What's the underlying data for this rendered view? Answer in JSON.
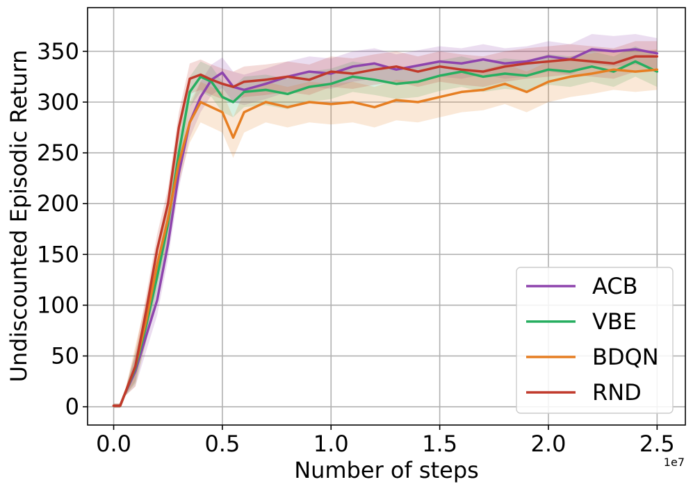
{
  "chart_data": {
    "type": "line",
    "xlabel": "Number of steps",
    "ylabel": "Undiscounted Episodic Return",
    "x_offset_label": "1e7",
    "xlim": [
      -0.12,
      2.63
    ],
    "ylim": [
      -18,
      393
    ],
    "x_ticks": [
      0.0,
      0.5,
      1.0,
      1.5,
      2.0,
      2.5
    ],
    "x_tick_labels": [
      "0.0",
      "0.5",
      "1.0",
      "1.5",
      "2.0",
      "2.5"
    ],
    "y_ticks": [
      0,
      50,
      100,
      150,
      200,
      250,
      300,
      350
    ],
    "y_tick_labels": [
      "0",
      "50",
      "100",
      "150",
      "200",
      "250",
      "300",
      "350"
    ],
    "grid": true,
    "legend_position": "lower-right",
    "series": [
      {
        "name": "ACB",
        "color": "#8e44ad",
        "x": [
          0.0,
          0.03,
          0.05,
          0.1,
          0.15,
          0.2,
          0.25,
          0.3,
          0.35,
          0.4,
          0.45,
          0.5,
          0.55,
          0.6,
          0.7,
          0.8,
          0.9,
          1.0,
          1.1,
          1.2,
          1.3,
          1.4,
          1.5,
          1.6,
          1.7,
          1.8,
          1.9,
          2.0,
          2.1,
          2.2,
          2.3,
          2.4,
          2.5
        ],
        "y": [
          1,
          1,
          12,
          35,
          70,
          105,
          160,
          230,
          280,
          305,
          322,
          329,
          315,
          312,
          318,
          325,
          330,
          328,
          335,
          338,
          332,
          336,
          340,
          338,
          342,
          338,
          340,
          345,
          342,
          352,
          350,
          352,
          348
        ],
        "band": 15
      },
      {
        "name": "VBE",
        "color": "#27ae60",
        "x": [
          0.0,
          0.03,
          0.05,
          0.1,
          0.15,
          0.2,
          0.25,
          0.3,
          0.35,
          0.4,
          0.45,
          0.5,
          0.55,
          0.6,
          0.7,
          0.8,
          0.9,
          1.0,
          1.1,
          1.2,
          1.3,
          1.4,
          1.5,
          1.6,
          1.7,
          1.8,
          1.9,
          2.0,
          2.1,
          2.2,
          2.3,
          2.4,
          2.5
        ],
        "y": [
          1,
          1,
          12,
          38,
          80,
          128,
          180,
          250,
          310,
          325,
          320,
          305,
          300,
          310,
          312,
          308,
          315,
          318,
          325,
          322,
          318,
          320,
          326,
          330,
          325,
          328,
          326,
          332,
          330,
          335,
          330,
          340,
          330
        ],
        "band": 15
      },
      {
        "name": "BDQN",
        "color": "#e67e22",
        "x": [
          0.0,
          0.03,
          0.05,
          0.1,
          0.15,
          0.2,
          0.25,
          0.3,
          0.35,
          0.4,
          0.45,
          0.5,
          0.55,
          0.6,
          0.7,
          0.8,
          0.9,
          1.0,
          1.1,
          1.2,
          1.3,
          1.4,
          1.5,
          1.6,
          1.7,
          1.8,
          1.9,
          2.0,
          2.1,
          2.2,
          2.3,
          2.4,
          2.5
        ],
        "y": [
          1,
          1,
          12,
          40,
          85,
          140,
          185,
          240,
          280,
          300,
          295,
          290,
          265,
          290,
          300,
          295,
          300,
          298,
          300,
          295,
          302,
          300,
          305,
          310,
          312,
          318,
          310,
          320,
          325,
          328,
          332,
          330,
          332
        ],
        "band": 20
      },
      {
        "name": "RND",
        "color": "#c0392b",
        "x": [
          0.0,
          0.03,
          0.05,
          0.1,
          0.15,
          0.2,
          0.25,
          0.3,
          0.35,
          0.4,
          0.45,
          0.5,
          0.55,
          0.6,
          0.7,
          0.8,
          0.9,
          1.0,
          1.1,
          1.2,
          1.3,
          1.4,
          1.5,
          1.6,
          1.7,
          1.8,
          1.9,
          2.0,
          2.1,
          2.2,
          2.3,
          2.4,
          2.5
        ],
        "y": [
          1,
          1,
          12,
          40,
          95,
          155,
          200,
          275,
          323,
          327,
          322,
          318,
          315,
          320,
          322,
          325,
          322,
          330,
          328,
          332,
          335,
          330,
          335,
          332,
          330,
          335,
          338,
          340,
          342,
          340,
          338,
          345,
          345
        ],
        "band": 15
      }
    ]
  }
}
